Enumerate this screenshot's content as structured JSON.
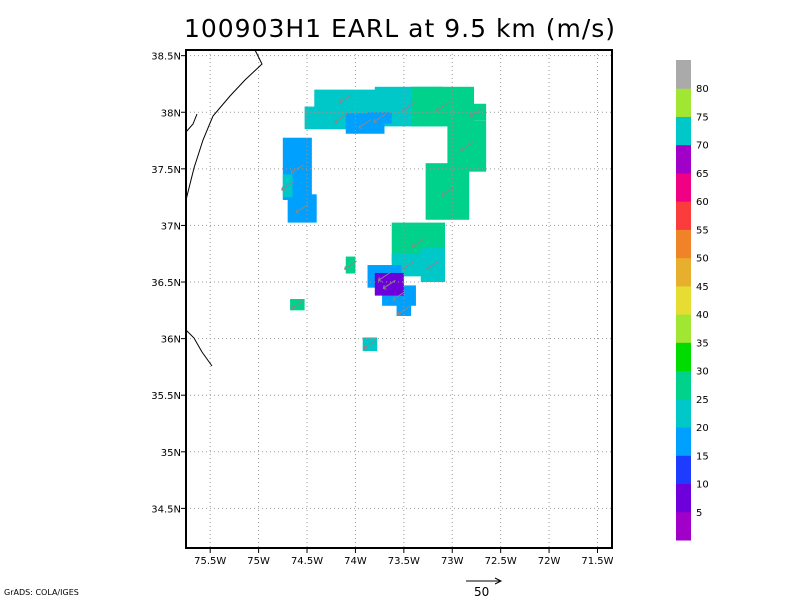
{
  "title": "100903H1 EARL at 9.5 km (m/s)",
  "credit": "GrADS: COLA/IGES",
  "reference_vector": {
    "label": "50"
  },
  "map": {
    "lon_range": [
      -75.75,
      -71.35
    ],
    "lat_range": [
      34.15,
      38.55
    ],
    "x_ticks": [
      {
        "lon": -75.5,
        "label": "75.5W"
      },
      {
        "lon": -75.0,
        "label": "75W"
      },
      {
        "lon": -74.5,
        "label": "74.5W"
      },
      {
        "lon": -74.0,
        "label": "74W"
      },
      {
        "lon": -73.5,
        "label": "73.5W"
      },
      {
        "lon": -73.0,
        "label": "73W"
      },
      {
        "lon": -72.5,
        "label": "72.5W"
      },
      {
        "lon": -72.0,
        "label": "72W"
      },
      {
        "lon": -71.5,
        "label": "71.5W"
      }
    ],
    "y_ticks": [
      {
        "lat": 38.5,
        "label": "38.5N"
      },
      {
        "lat": 38.0,
        "label": "38N"
      },
      {
        "lat": 37.5,
        "label": "37.5N"
      },
      {
        "lat": 37.0,
        "label": "37N"
      },
      {
        "lat": 36.5,
        "label": "36.5N"
      },
      {
        "lat": 36.0,
        "label": "36N"
      },
      {
        "lat": 35.5,
        "label": "35.5N"
      },
      {
        "lat": 35.0,
        "label": "35N"
      },
      {
        "lat": 34.5,
        "label": "34.5N"
      }
    ],
    "grid": true
  },
  "colorbar": {
    "colors": [
      "#a000c8",
      "#6e00dc",
      "#1e3cff",
      "#00a0ff",
      "#00c8c8",
      "#00d28c",
      "#00dc00",
      "#a0e632",
      "#e6dc32",
      "#e6af2d",
      "#f08228",
      "#fa3c3c",
      "#f00082",
      "#a000c8",
      "#00c8c8",
      "#a0e632",
      "#aaaaaa"
    ],
    "labels": [
      "5",
      "10",
      "15",
      "20",
      "25",
      "30",
      "35",
      "40",
      "45",
      "50",
      "55",
      "60",
      "65",
      "70",
      "75",
      "80"
    ]
  },
  "wind_field": {
    "description_units": "m/s",
    "cells": [
      {
        "lon": -74.15,
        "lat": 37.95,
        "w": 0.75,
        "h": 0.2,
        "speed": 20
      },
      {
        "lon": -74.1,
        "lat": 38.12,
        "w": 0.65,
        "h": 0.16,
        "speed": 20
      },
      {
        "lon": -73.45,
        "lat": 38.05,
        "w": 0.7,
        "h": 0.35,
        "speed": 20
      },
      {
        "lon": -73.9,
        "lat": 37.9,
        "w": 0.4,
        "h": 0.18,
        "speed": 15
      },
      {
        "lon": -73.75,
        "lat": 37.95,
        "w": 0.25,
        "h": 0.1,
        "speed": 15
      },
      {
        "lon": -73.1,
        "lat": 38.05,
        "w": 0.65,
        "h": 0.35,
        "speed": 25
      },
      {
        "lon": -72.85,
        "lat": 37.7,
        "w": 0.4,
        "h": 0.45,
        "speed": 25
      },
      {
        "lon": -72.75,
        "lat": 38.0,
        "w": 0.2,
        "h": 0.15,
        "speed": 25
      },
      {
        "lon": -73.05,
        "lat": 37.3,
        "w": 0.45,
        "h": 0.5,
        "speed": 25
      },
      {
        "lon": -73.35,
        "lat": 36.85,
        "w": 0.55,
        "h": 0.35,
        "speed": 25
      },
      {
        "lon": -73.45,
        "lat": 36.65,
        "w": 0.35,
        "h": 0.2,
        "speed": 20
      },
      {
        "lon": -73.2,
        "lat": 36.65,
        "w": 0.25,
        "h": 0.3,
        "speed": 20
      },
      {
        "lon": -73.7,
        "lat": 36.55,
        "w": 0.35,
        "h": 0.2,
        "speed": 15
      },
      {
        "lon": -73.55,
        "lat": 36.38,
        "w": 0.35,
        "h": 0.18,
        "speed": 15
      },
      {
        "lon": -73.65,
        "lat": 36.48,
        "w": 0.3,
        "h": 0.2,
        "speed": 5
      },
      {
        "lon": -73.5,
        "lat": 36.25,
        "w": 0.15,
        "h": 0.1,
        "speed": 15
      },
      {
        "lon": -74.6,
        "lat": 37.5,
        "w": 0.3,
        "h": 0.55,
        "speed": 15
      },
      {
        "lon": -74.55,
        "lat": 37.15,
        "w": 0.3,
        "h": 0.25,
        "speed": 15
      },
      {
        "lon": -74.7,
        "lat": 37.35,
        "w": 0.1,
        "h": 0.2,
        "speed": 20
      },
      {
        "lon": -74.05,
        "lat": 36.65,
        "w": 0.1,
        "h": 0.15,
        "speed": 25
      },
      {
        "lon": -74.6,
        "lat": 36.3,
        "w": 0.15,
        "h": 0.1,
        "speed": 25
      },
      {
        "lon": -73.85,
        "lat": 35.95,
        "w": 0.15,
        "h": 0.12,
        "speed": 20
      }
    ]
  }
}
